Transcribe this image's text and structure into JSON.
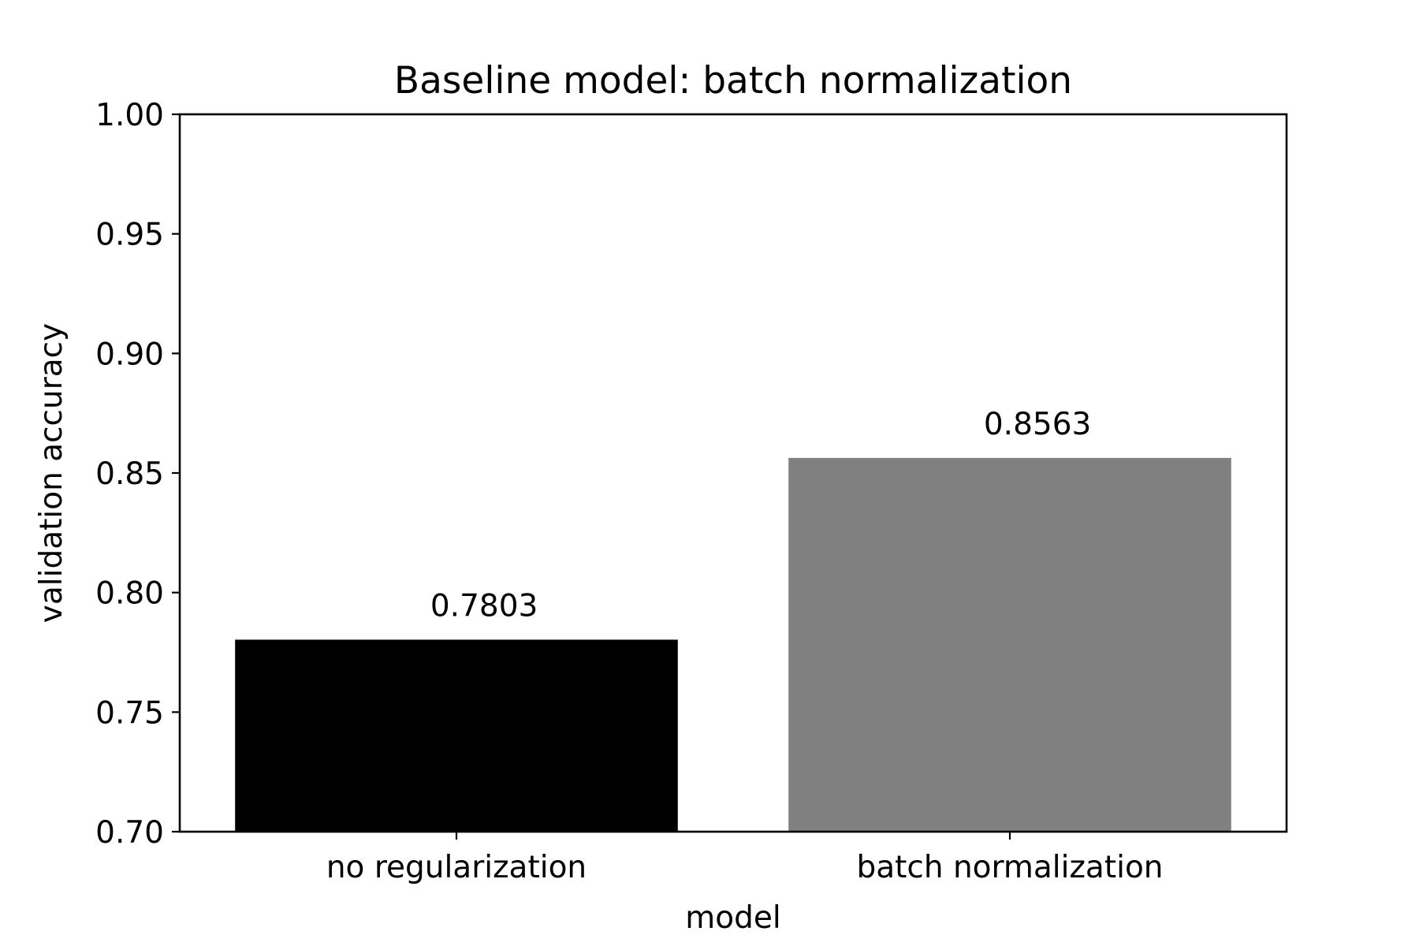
{
  "chart_data": {
    "type": "bar",
    "title": "Baseline model: batch normalization",
    "xlabel": "model",
    "ylabel": "validation accuracy",
    "categories": [
      "no regularization",
      "batch normalization"
    ],
    "values": [
      0.7803,
      0.8563
    ],
    "value_labels": [
      "0.7803",
      "0.8563"
    ],
    "bar_colors": [
      "#000000",
      "#808080"
    ],
    "ylim": [
      0.7,
      1.0
    ],
    "yticks": [
      0.7,
      0.75,
      0.8,
      0.85,
      0.9,
      0.95,
      1.0
    ],
    "ytick_labels": [
      "0.70",
      "0.75",
      "0.80",
      "0.85",
      "0.90",
      "0.95",
      "1.00"
    ],
    "grid": false,
    "legend": "none"
  }
}
